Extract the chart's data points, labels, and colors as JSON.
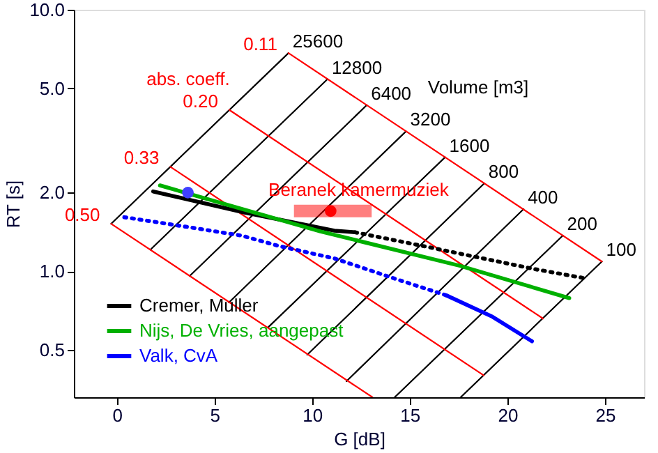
{
  "chart_data": {
    "type": "line",
    "xlabel": "G  [dB]",
    "ylabel": "RT  [s]",
    "xlim": [
      -2.2,
      27
    ],
    "ylim": [
      0.33,
      10
    ],
    "log": "y",
    "grid": false,
    "legend": "bottom left",
    "xticks": [
      0,
      5,
      10,
      15,
      20,
      25
    ],
    "yticks": [
      {
        "value": 0.5,
        "label": "0.5"
      },
      {
        "value": 1,
        "label": "1.0"
      },
      {
        "value": 2,
        "label": "2.0"
      },
      {
        "value": 5,
        "label": "5.0"
      },
      {
        "value": 10,
        "label": "10.0"
      }
    ],
    "annotations": [
      "abs. coeff.",
      "Volume [m3]"
    ],
    "series": [
      {
        "name": "25600",
        "color": "#000000",
        "x": [
          8.79,
          -0.29
        ],
        "values": [
          6.83,
          1.52
        ]
      },
      {
        "name": "12800",
        "color": "#000000",
        "x": [
          10.79,
          1.72
        ],
        "values": [
          5.43,
          1.21
        ]
      },
      {
        "name": "6400",
        "color": "#000000",
        "x": [
          12.8,
          3.73
        ],
        "values": [
          4.32,
          0.96
        ]
      },
      {
        "name": "3200",
        "color": "#000000",
        "x": [
          14.81,
          5.74
        ],
        "values": [
          3.43,
          0.76
        ]
      },
      {
        "name": "1600",
        "color": "#000000",
        "x": [
          16.81,
          7.74
        ],
        "values": [
          2.73,
          0.61
        ]
      },
      {
        "name": "800",
        "color": "#000000",
        "x": [
          18.82,
          9.75
        ],
        "values": [
          2.17,
          0.48
        ]
      },
      {
        "name": "400",
        "color": "#000000",
        "x": [
          20.83,
          11.76
        ],
        "values": [
          1.73,
          0.38
        ]
      },
      {
        "name": "200",
        "color": "#000000",
        "x": [
          22.84,
          14.23
        ],
        "values": [
          1.37,
          0.33
        ]
      },
      {
        "name": "100",
        "color": "#000000",
        "x": [
          24.84,
          17.61
        ],
        "values": [
          1.09,
          0.33
        ]
      },
      {
        "name": "0.11",
        "color": "#ff0000",
        "x": [
          8.79,
          24.84
        ],
        "values": [
          6.83,
          1.09
        ]
      },
      {
        "name": "0.20",
        "color": "#ff0000",
        "x": [
          5.76,
          21.82
        ],
        "values": [
          4.14,
          0.66
        ]
      },
      {
        "name": "0.33",
        "color": "#ff0000",
        "x": [
          2.74,
          18.79
        ],
        "values": [
          2.51,
          0.4
        ]
      },
      {
        "name": "0.50",
        "color": "#ff0000",
        "x": [
          -0.29,
          13.09
        ],
        "values": [
          1.52,
          0.33
        ]
      },
      {
        "name": "Cremer, Muller",
        "color": "#000000",
        "line_style": "solid",
        "x": [
          1.86,
          6.5,
          11.14,
          12.2
        ],
        "values": [
          2.02,
          1.68,
          1.43,
          1.41
        ]
      },
      {
        "color": "#000000",
        "line_style": "dotted",
        "x": [
          12.2,
          15.9,
          21.38,
          24.0
        ],
        "values": [
          1.41,
          1.24,
          1.02,
          0.94
        ]
      },
      {
        "name": "Nijs, De Vries, aangepast",
        "color": "#00b000",
        "line_style": "solid",
        "x": [
          2.21,
          10.43,
          17.57,
          23.17
        ],
        "values": [
          2.13,
          1.42,
          1.05,
          0.79
        ]
      },
      {
        "color": "#0000ff",
        "line_style": "dotted",
        "x": [
          0.38,
          2.57,
          6.38,
          8.29,
          11.14,
          14.0,
          16.86
        ],
        "values": [
          1.61,
          1.52,
          1.37,
          1.25,
          1.12,
          0.95,
          0.81
        ]
      },
      {
        "name": "Valk, CvA",
        "color": "#0000ff",
        "line_style": "solid",
        "x": [
          16.86,
          19.24,
          21.26
        ],
        "values": [
          0.81,
          0.67,
          0.54
        ]
      },
      {
        "type": "scatter",
        "marker": "circle",
        "color": "#4040ff",
        "x": [
          3.64
        ],
        "values": [
          2.0
        ]
      },
      {
        "type": "scatter",
        "marker": "circle",
        "name": "Beranek kamermuziek",
        "color": "#ff0000",
        "x": [
          10.95
        ],
        "values": [
          1.7
        ],
        "xerrors": [
          [
            9.07,
            13.05
          ]
        ]
      }
    ]
  }
}
